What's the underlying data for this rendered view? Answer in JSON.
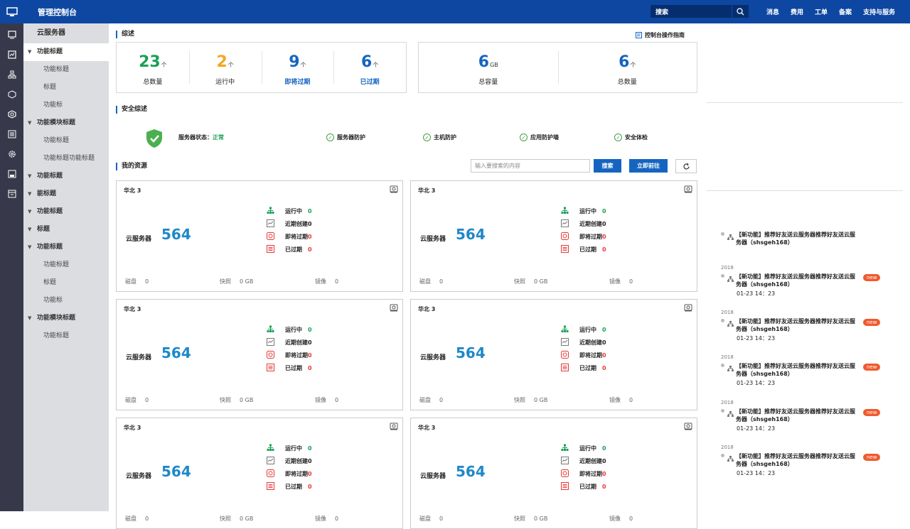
{
  "topbar": {
    "title": "管理控制台",
    "search_label": "搜索",
    "nav": [
      "消息",
      "费用",
      "工单",
      "备案",
      "支持与服务"
    ]
  },
  "sidebar": {
    "title": "云服务器",
    "items": [
      {
        "label": "功能标题",
        "level": "top",
        "active": true
      },
      {
        "label": "功能标题",
        "level": "sub"
      },
      {
        "label": "标题",
        "level": "sub"
      },
      {
        "label": "功能标",
        "level": "sub"
      },
      {
        "label": "功能模块标题",
        "level": "top"
      },
      {
        "label": "功能标题",
        "level": "sub"
      },
      {
        "label": "功能标题功能标题",
        "level": "sub"
      },
      {
        "label": "功能标题",
        "level": "top"
      },
      {
        "label": "能标题",
        "level": "top"
      },
      {
        "label": "功能标题",
        "level": "top"
      },
      {
        "label": "标题",
        "level": "top"
      },
      {
        "label": "功能标题",
        "level": "top"
      },
      {
        "label": "功能标题",
        "level": "sub"
      },
      {
        "label": "标题",
        "level": "sub"
      },
      {
        "label": "功能标",
        "level": "sub"
      },
      {
        "label": "功能模块标题",
        "level": "top"
      },
      {
        "label": "功能标题",
        "level": "sub"
      }
    ]
  },
  "overview": {
    "heading": "综述",
    "guide": "控制台操作指南",
    "stats_left": [
      {
        "value": "23",
        "unit": "个",
        "label": "总数量",
        "color": "#1aa055"
      },
      {
        "value": "2",
        "unit": "个",
        "label": "运行中",
        "color": "#f5a623"
      },
      {
        "value": "9",
        "unit": "个",
        "label": "即将过期",
        "color": "#1565c0"
      },
      {
        "value": "6",
        "unit": "个",
        "label": "已过期",
        "color": "#1565c0"
      }
    ],
    "stats_right": [
      {
        "value": "6",
        "unit": "GB",
        "label": "总容量",
        "color": "#1565c0"
      },
      {
        "value": "6",
        "unit": "个",
        "label": "总数量",
        "color": "#1565c0"
      }
    ]
  },
  "security": {
    "heading": "安全综述",
    "status_label": "服务器状态：",
    "status_value": "正常",
    "items": [
      "服务器防护",
      "主机防护",
      "应用防护墙",
      "安全体检"
    ]
  },
  "resources": {
    "heading": "我的资源",
    "search_placeholder": "输入要搜索的内容",
    "search_button": "搜索",
    "go_button": "立即前往",
    "cards": [
      {
        "region": "华北 3",
        "type": "云服务器",
        "count": "564"
      },
      {
        "region": "华北 3",
        "type": "云服务器",
        "count": "564"
      },
      {
        "region": "华北 3",
        "type": "云服务器",
        "count": "564"
      },
      {
        "region": "华北 3",
        "type": "云服务器",
        "count": "564"
      },
      {
        "region": "华北 3",
        "type": "云服务器",
        "count": "564"
      },
      {
        "region": "华北 3",
        "type": "云服务器",
        "count": "564"
      }
    ],
    "status_rows": [
      {
        "label": "运行中",
        "value": "0",
        "color": "#1aa055"
      },
      {
        "label": "近期创建",
        "value": "0",
        "color": "#222222"
      },
      {
        "label": "即将过期",
        "value": "0",
        "color": "#e53935"
      },
      {
        "label": "已过期",
        "value": "0",
        "color": "#e53935"
      }
    ],
    "footer": [
      {
        "label": "磁盘",
        "value": "0"
      },
      {
        "label": "快照",
        "value": "0 GB"
      },
      {
        "label": "镜像",
        "value": "0"
      }
    ]
  },
  "news": [
    {
      "year": "",
      "text": "【新功能】推荐好友送云服务器推荐好友送云服务器（shsgeh168）",
      "date": "",
      "badge": ""
    },
    {
      "year": "2018",
      "text": "【新功能】推荐好友送云服务器推荐好友送云服务器（shsgeh168）",
      "date": "01-23  14：23",
      "badge": "new"
    },
    {
      "year": "2018",
      "text": "【新功能】推荐好友送云服务器推荐好友送云服务器（shsgeh168）",
      "date": "01-23  14：23",
      "badge": "new"
    },
    {
      "year": "2018",
      "text": "【新功能】推荐好友送云服务器推荐好友送云服务器（shsgeh168）",
      "date": "01-23  14：23",
      "badge": "new"
    },
    {
      "year": "2018",
      "text": "【新功能】推荐好友送云服务器推荐好友送云服务器（shsgeh168）",
      "date": "01-23  14：23",
      "badge": "new"
    },
    {
      "year": "2018",
      "text": "【新功能】推荐好友送云服务器推荐好友送云服务器（shsgeh168）",
      "date": "01-23  14：23",
      "badge": "new"
    }
  ]
}
